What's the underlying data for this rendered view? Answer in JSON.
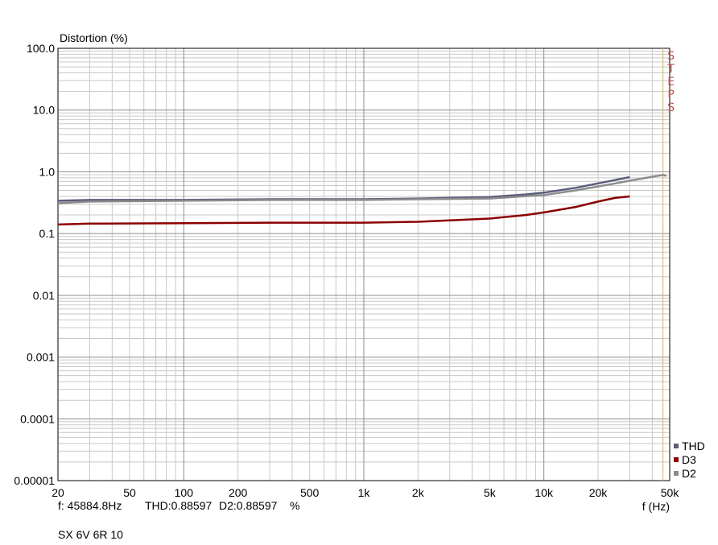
{
  "chart_data": {
    "type": "line",
    "ylabel": "Distortion (%)",
    "xlabel": "f (Hz)",
    "x_scale": "log",
    "y_scale": "log",
    "xlim": [
      20,
      50000
    ],
    "ylim": [
      1e-05,
      100
    ],
    "x_ticks": [
      {
        "value": 20,
        "label": "20"
      },
      {
        "value": 50,
        "label": "50"
      },
      {
        "value": 100,
        "label": "100"
      },
      {
        "value": 200,
        "label": "200"
      },
      {
        "value": 500,
        "label": "500"
      },
      {
        "value": 1000,
        "label": "1k"
      },
      {
        "value": 2000,
        "label": "2k"
      },
      {
        "value": 5000,
        "label": "5k"
      },
      {
        "value": 10000,
        "label": "10k"
      },
      {
        "value": 20000,
        "label": "20k"
      },
      {
        "value": 50000,
        "label": "50k"
      }
    ],
    "y_ticks": [
      {
        "value": 100,
        "label": "100.0"
      },
      {
        "value": 10,
        "label": "10.0"
      },
      {
        "value": 1,
        "label": "1.0"
      },
      {
        "value": 0.1,
        "label": "0.1"
      },
      {
        "value": 0.01,
        "label": "0.01"
      },
      {
        "value": 0.001,
        "label": "0.001"
      },
      {
        "value": 0.0001,
        "label": "0.0001"
      },
      {
        "value": 1e-05,
        "label": "0.00001"
      }
    ],
    "grid": true,
    "legend_position": "bottom-right",
    "series": [
      {
        "name": "THD",
        "color": "#5a5d7c",
        "x": [
          20,
          30,
          100,
          300,
          1000,
          2000,
          5000,
          8000,
          10000,
          15000,
          20000,
          25000,
          30000
        ],
        "y": [
          0.34,
          0.35,
          0.35,
          0.36,
          0.36,
          0.37,
          0.39,
          0.43,
          0.46,
          0.55,
          0.65,
          0.74,
          0.82
        ]
      },
      {
        "name": "D3",
        "color": "#8b0000",
        "x": [
          20,
          30,
          100,
          300,
          1000,
          2000,
          5000,
          8000,
          10000,
          15000,
          20000,
          25000,
          30000
        ],
        "y": [
          0.14,
          0.145,
          0.147,
          0.15,
          0.15,
          0.155,
          0.175,
          0.2,
          0.22,
          0.27,
          0.33,
          0.38,
          0.4
        ]
      },
      {
        "name": "D2",
        "color": "#8c8c8c",
        "x": [
          20,
          30,
          100,
          300,
          1000,
          2000,
          5000,
          10000,
          15000,
          20000,
          25000,
          30000,
          40000,
          45884.8,
          48000
        ],
        "y": [
          0.31,
          0.33,
          0.34,
          0.35,
          0.35,
          0.36,
          0.37,
          0.42,
          0.5,
          0.58,
          0.65,
          0.72,
          0.83,
          0.89,
          0.86
        ]
      }
    ],
    "annotations": {
      "vertical_marker": {
        "x": 45884.8,
        "color": "#d4b84a",
        "label": "STEPS",
        "label_color": "#c0504d"
      }
    },
    "readout": {
      "freq": "f: 45884.8Hz",
      "thd": "THD:0.88597",
      "d2": "D2:0.88597",
      "unit": "%"
    },
    "caption": "SX 6V 6R 10"
  }
}
